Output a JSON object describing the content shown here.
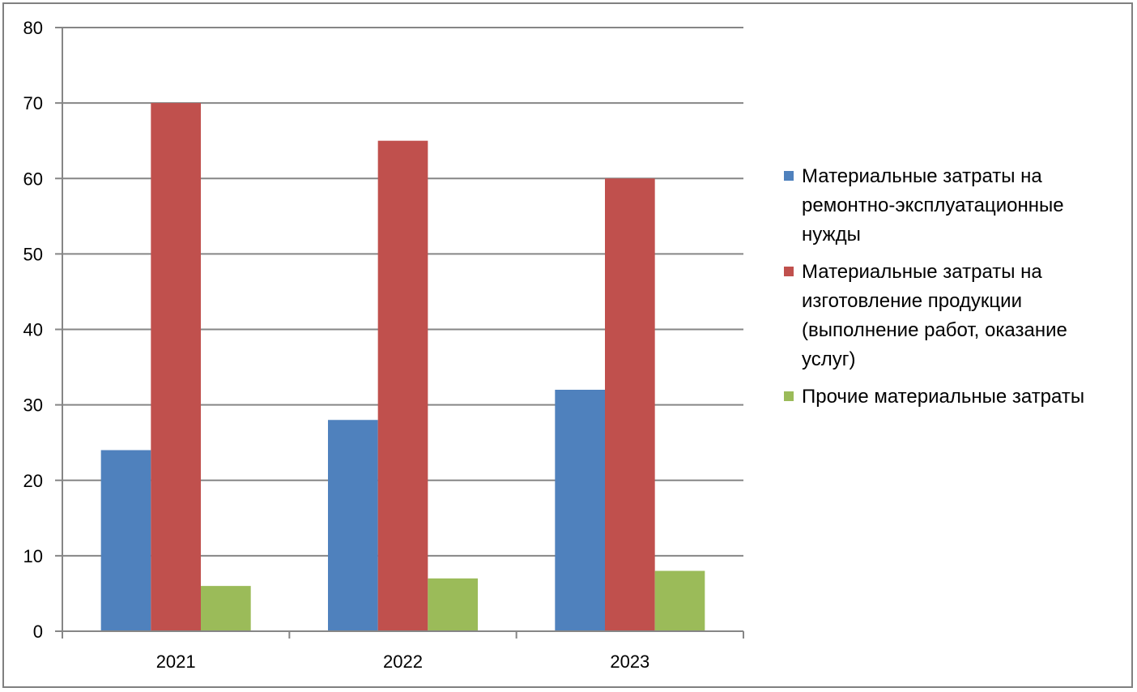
{
  "chart_data": {
    "type": "bar",
    "categories": [
      "2021",
      "2022",
      "2023"
    ],
    "series": [
      {
        "name": "Материальные затраты на ремонтно-эксплуатационные нужды",
        "values": [
          24,
          28,
          32
        ],
        "color": "#4F81BD"
      },
      {
        "name": "Материальные затраты на изготовление продукции (выполнение работ, оказание услуг)",
        "values": [
          70,
          65,
          60
        ],
        "color": "#C0504D"
      },
      {
        "name": "Прочие материальные затраты",
        "values": [
          6,
          7,
          8
        ],
        "color": "#9BBB59"
      }
    ],
    "ylim": [
      0,
      80
    ],
    "yticks": [
      0,
      10,
      20,
      30,
      40,
      50,
      60,
      70,
      80
    ],
    "grid": true,
    "legend_position": "right"
  }
}
